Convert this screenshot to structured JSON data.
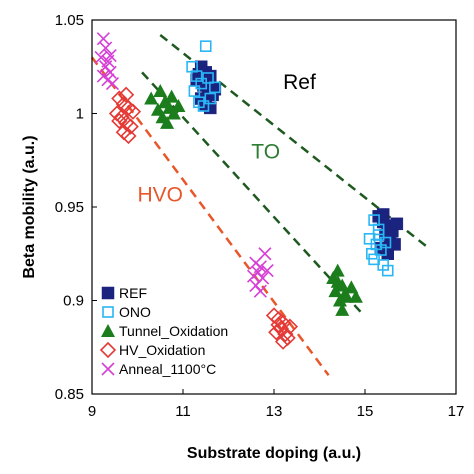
{
  "chart_data": {
    "type": "scatter",
    "xlabel": "Substrate doping (a.u.)",
    "ylabel": "Beta mobility (a.u.)",
    "xlim": [
      9,
      17
    ],
    "ylim": [
      0.85,
      1.05
    ],
    "x_ticks": [
      "9",
      "11",
      "13",
      "15",
      "17"
    ],
    "y_ticks": [
      "0.85",
      "0.9",
      "0.95",
      "1",
      "1.05"
    ],
    "legend_position": "bottom-left",
    "series": [
      {
        "name": "REF",
        "marker": "square-filled",
        "color": "#1a237e",
        "points": [
          [
            11.4,
            1.025
          ],
          [
            11.5,
            1.022
          ],
          [
            11.6,
            1.02
          ],
          [
            11.3,
            1.018
          ],
          [
            11.45,
            1.015
          ],
          [
            11.55,
            1.012
          ],
          [
            11.65,
            1.01
          ],
          [
            11.4,
            1.008
          ],
          [
            11.5,
            1.005
          ],
          [
            11.6,
            1.003
          ],
          [
            11.7,
            1.013
          ],
          [
            11.35,
            1.021
          ],
          [
            15.3,
            0.945
          ],
          [
            15.4,
            0.942
          ],
          [
            15.5,
            0.94
          ],
          [
            15.6,
            0.938
          ],
          [
            15.45,
            0.935
          ],
          [
            15.55,
            0.932
          ],
          [
            15.65,
            0.93
          ],
          [
            15.35,
            0.928
          ],
          [
            15.5,
            0.925
          ],
          [
            15.6,
            0.937
          ],
          [
            15.7,
            0.941
          ],
          [
            15.4,
            0.946
          ]
        ]
      },
      {
        "name": "ONO",
        "marker": "square-open",
        "color": "#29b6f6",
        "points": [
          [
            11.5,
            1.036
          ],
          [
            11.2,
            1.025
          ],
          [
            11.3,
            1.02
          ],
          [
            11.4,
            1.016
          ],
          [
            11.25,
            1.012
          ],
          [
            11.6,
            1.008
          ],
          [
            11.35,
            1.006
          ],
          [
            11.55,
            1.019
          ],
          [
            11.7,
            1.014
          ],
          [
            11.45,
            1.004
          ],
          [
            15.2,
            0.943
          ],
          [
            15.3,
            0.938
          ],
          [
            15.1,
            0.933
          ],
          [
            15.25,
            0.93
          ],
          [
            15.35,
            0.927
          ],
          [
            15.15,
            0.925
          ],
          [
            15.2,
            0.922
          ],
          [
            15.4,
            0.919
          ],
          [
            15.5,
            0.916
          ],
          [
            15.3,
            0.935
          ],
          [
            15.45,
            0.931
          ]
        ]
      },
      {
        "name": "Tunnel_Oxidation",
        "marker": "triangle-filled",
        "color": "#1b7d1b",
        "points": [
          [
            10.3,
            1.008
          ],
          [
            10.5,
            1.012
          ],
          [
            10.6,
            1.006
          ],
          [
            10.7,
            1.003
          ],
          [
            10.55,
            0.998
          ],
          [
            10.8,
            1.0
          ],
          [
            10.65,
            0.995
          ],
          [
            10.9,
            1.004
          ],
          [
            10.75,
            1.009
          ],
          [
            10.45,
            1.002
          ],
          [
            14.3,
            0.912
          ],
          [
            14.4,
            0.91
          ],
          [
            14.5,
            0.908
          ],
          [
            14.35,
            0.905
          ],
          [
            14.55,
            0.903
          ],
          [
            14.45,
            0.9
          ],
          [
            14.6,
            0.902
          ],
          [
            14.5,
            0.895
          ],
          [
            14.7,
            0.907
          ],
          [
            14.8,
            0.902
          ],
          [
            14.4,
            0.916
          ]
        ]
      },
      {
        "name": "HV_Oxidation",
        "marker": "diamond-open",
        "color": "#e53935",
        "points": [
          [
            9.6,
            1.008
          ],
          [
            9.7,
            1.005
          ],
          [
            9.8,
            1.003
          ],
          [
            9.55,
            1.0
          ],
          [
            9.65,
            0.998
          ],
          [
            9.75,
            0.995
          ],
          [
            9.85,
            0.993
          ],
          [
            9.7,
            0.99
          ],
          [
            9.8,
            0.988
          ],
          [
            9.6,
            0.996
          ],
          [
            9.9,
            1.001
          ],
          [
            9.75,
            1.01
          ],
          [
            13.0,
            0.892
          ],
          [
            13.1,
            0.89
          ],
          [
            13.2,
            0.888
          ],
          [
            13.15,
            0.885
          ],
          [
            13.25,
            0.882
          ],
          [
            13.3,
            0.88
          ],
          [
            13.2,
            0.878
          ],
          [
            13.1,
            0.887
          ],
          [
            13.35,
            0.886
          ],
          [
            13.05,
            0.883
          ]
        ]
      },
      {
        "name": "Anneal_1100°C",
        "marker": "x",
        "color": "#d63fd6",
        "points": [
          [
            9.25,
            1.04
          ],
          [
            9.3,
            1.035
          ],
          [
            9.2,
            1.03
          ],
          [
            9.35,
            1.028
          ],
          [
            9.3,
            1.025
          ],
          [
            9.4,
            1.022
          ],
          [
            9.35,
            1.018
          ],
          [
            9.45,
            1.016
          ],
          [
            9.25,
            1.02
          ],
          [
            9.4,
            1.031
          ],
          [
            12.6,
            0.92
          ],
          [
            12.7,
            0.918
          ],
          [
            12.8,
            0.925
          ],
          [
            12.65,
            0.915
          ],
          [
            12.75,
            0.912
          ],
          [
            12.6,
            0.908
          ],
          [
            12.7,
            0.905
          ],
          [
            12.85,
            0.916
          ],
          [
            12.55,
            0.913
          ]
        ]
      }
    ],
    "trend_lines": [
      {
        "label": "Ref",
        "color": "#1e5a20",
        "x": [
          10.5,
          16.4
        ],
        "y": [
          1.042,
          0.928
        ]
      },
      {
        "label": "TO",
        "color": "#1e5a20",
        "x": [
          10.1,
          14.9
        ],
        "y": [
          1.022,
          0.894
        ]
      },
      {
        "label": "HVO",
        "color": "#e8572a",
        "x": [
          9.0,
          14.2
        ],
        "y": [
          1.03,
          0.86
        ]
      }
    ],
    "annotations": [
      {
        "text": "Ref",
        "color": "#000000",
        "x": 13.2,
        "y": 1.013
      },
      {
        "text": "TO",
        "color": "#2e7d32",
        "x": 12.5,
        "y": 0.976
      },
      {
        "text": "HVO",
        "color": "#e8572a",
        "x": 10.0,
        "y": 0.953
      }
    ]
  }
}
